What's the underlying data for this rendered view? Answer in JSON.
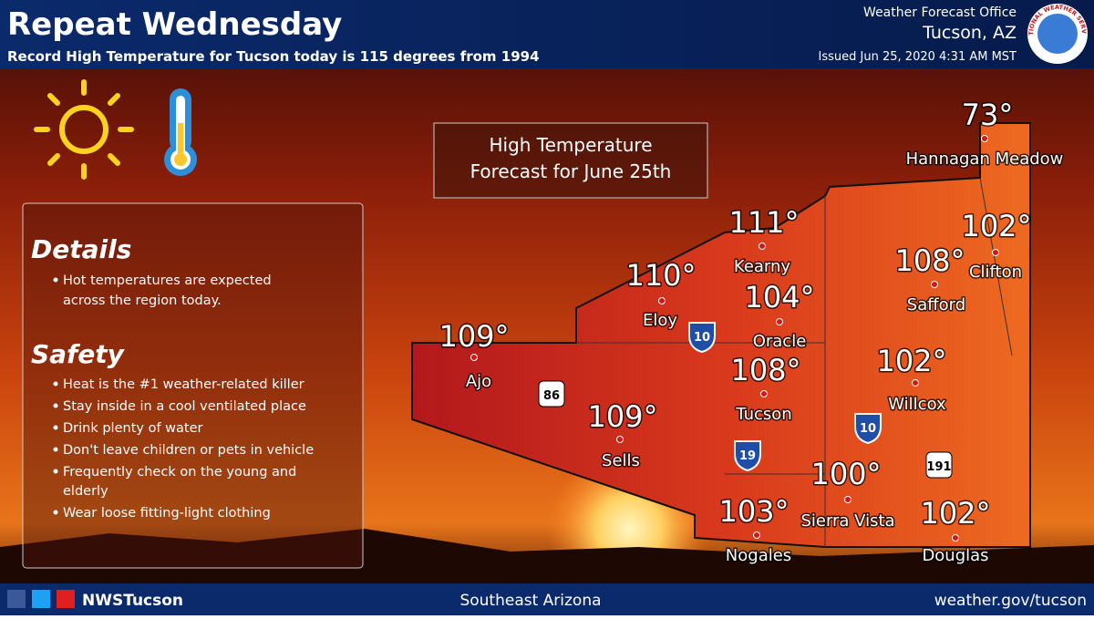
{
  "header": {
    "title": "Repeat Wednesday",
    "subtitle": "Record High Temperature for Tucson today is 115 degrees from 1994",
    "office": "Weather Forecast Office",
    "location": "Tucson, AZ",
    "issued": "Issued Jun 25, 2020 4:31 AM MST",
    "logo_text": "NATIONAL WEATHER SERVICE"
  },
  "map_title": {
    "line1": "High Temperature",
    "line2": "Forecast for June 25th"
  },
  "details": {
    "heading": "Details",
    "items": [
      "Hot temperatures are expected",
      "across the region today."
    ]
  },
  "safety": {
    "heading": "Safety",
    "items": [
      "Heat is the #1 weather-related killer",
      "Stay inside in a cool ventilated place",
      "Drink plenty of water",
      "Don't leave children or pets in vehicle",
      "Frequently check on the young and",
      "elderly",
      "Wear loose fitting-light clothing"
    ]
  },
  "cities": [
    {
      "name": "Hannagan Meadow",
      "temp": "73°"
    },
    {
      "name": "Kearny",
      "temp": "111°"
    },
    {
      "name": "Clifton",
      "temp": "102°"
    },
    {
      "name": "Safford",
      "temp": "108°"
    },
    {
      "name": "Eloy",
      "temp": "110°"
    },
    {
      "name": "Oracle",
      "temp": "104°"
    },
    {
      "name": "Ajo",
      "temp": "109°"
    },
    {
      "name": "Tucson",
      "temp": "108°"
    },
    {
      "name": "Willcox",
      "temp": "102°"
    },
    {
      "name": "Sells",
      "temp": "109°"
    },
    {
      "name": "Sierra Vista",
      "temp": "100°"
    },
    {
      "name": "Nogales",
      "temp": "103°"
    },
    {
      "name": "Douglas",
      "temp": "102°"
    }
  ],
  "highways": [
    "10",
    "86",
    "19",
    "10",
    "191"
  ],
  "footer": {
    "social": "NWSTucson",
    "region": "Southeast Arizona",
    "url": "weather.gov/tucson"
  }
}
